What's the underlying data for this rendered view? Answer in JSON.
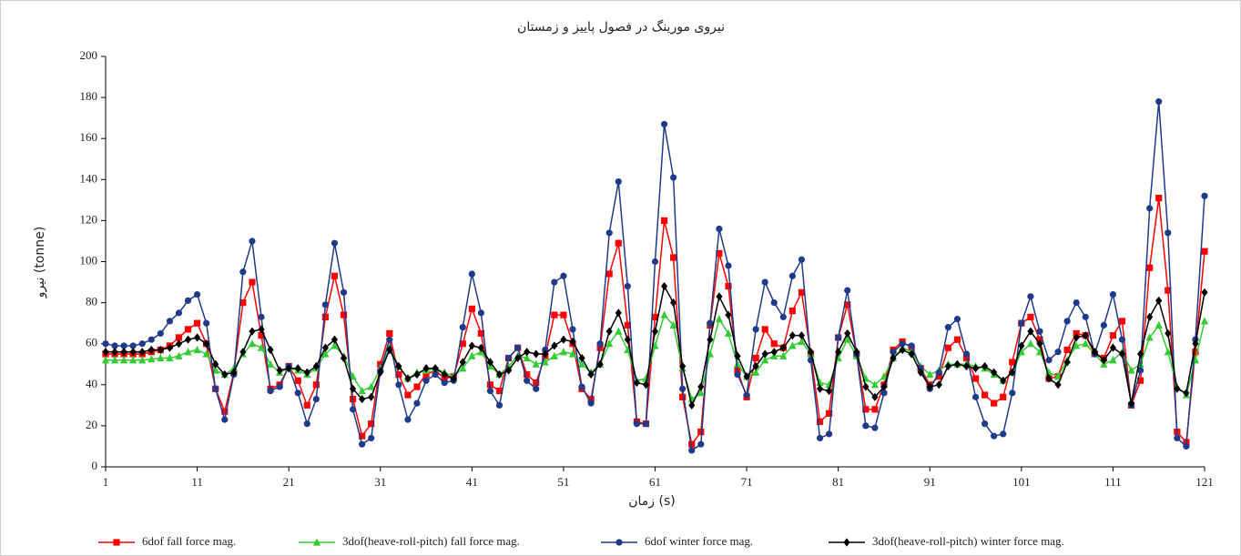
{
  "chart_data": {
    "type": "line",
    "title": "نیروی مورینگ در فصول پاییز و زمستان",
    "xlabel": "زمان (s)",
    "ylabel": "نیرو (tonne)",
    "grid": false,
    "legend_position": "bottom",
    "xlim": [
      1,
      121
    ],
    "xticks": [
      1,
      11,
      21,
      31,
      41,
      51,
      61,
      71,
      81,
      91,
      101,
      111,
      121
    ],
    "ylim": [
      0,
      200
    ],
    "yticks": [
      0,
      20,
      40,
      60,
      80,
      100,
      120,
      140,
      160,
      180,
      200
    ],
    "x": [
      1,
      2,
      3,
      4,
      5,
      6,
      7,
      8,
      9,
      10,
      11,
      12,
      13,
      14,
      15,
      16,
      17,
      18,
      19,
      20,
      21,
      22,
      23,
      24,
      25,
      26,
      27,
      28,
      29,
      30,
      31,
      32,
      33,
      34,
      35,
      36,
      37,
      38,
      39,
      40,
      41,
      42,
      43,
      44,
      45,
      46,
      47,
      48,
      49,
      50,
      51,
      52,
      53,
      54,
      55,
      56,
      57,
      58,
      59,
      60,
      61,
      62,
      63,
      64,
      65,
      66,
      67,
      68,
      69,
      70,
      71,
      72,
      73,
      74,
      75,
      76,
      77,
      78,
      79,
      80,
      81,
      82,
      83,
      84,
      85,
      86,
      87,
      88,
      89,
      90,
      91,
      92,
      93,
      94,
      95,
      96,
      97,
      98,
      99,
      100,
      101,
      102,
      103,
      104,
      105,
      106,
      107,
      108,
      109,
      110,
      111,
      112,
      113,
      114,
      115,
      116,
      117,
      118,
      119,
      120,
      121
    ],
    "series": [
      {
        "name": "6dof fall force mag.",
        "color": "#ff0000",
        "marker": "square",
        "values": [
          55,
          55,
          55,
          55,
          55,
          56,
          57,
          59,
          63,
          67,
          70,
          60,
          38,
          27,
          46,
          80,
          90,
          64,
          38,
          40,
          49,
          42,
          30,
          40,
          73,
          93,
          74,
          33,
          15,
          21,
          50,
          65,
          45,
          35,
          39,
          45,
          47,
          43,
          44,
          60,
          77,
          65,
          40,
          37,
          53,
          58,
          45,
          41,
          54,
          74,
          74,
          60,
          38,
          33,
          58,
          94,
          109,
          69,
          22,
          21,
          73,
          120,
          102,
          34,
          11,
          17,
          69,
          104,
          88,
          47,
          34,
          53,
          67,
          60,
          58,
          76,
          85,
          55,
          22,
          26,
          63,
          79,
          55,
          28,
          28,
          40,
          57,
          61,
          58,
          48,
          40,
          44,
          58,
          62,
          53,
          43,
          35,
          31,
          34,
          51,
          70,
          73,
          62,
          43,
          44,
          57,
          65,
          64,
          55,
          53,
          64,
          71,
          30,
          42,
          97,
          131,
          86,
          17,
          12,
          56,
          105
        ]
      },
      {
        "name": "3dof(heave-roll-pitch) fall force mag.",
        "color": "#33cc33",
        "marker": "triangle",
        "values": [
          52,
          52,
          52,
          52,
          52,
          52.5,
          53,
          53,
          54,
          56,
          57,
          55,
          47,
          45,
          48,
          55,
          60,
          58,
          50,
          46,
          48,
          47,
          45,
          48,
          55,
          59,
          54,
          44,
          37,
          39,
          48,
          58,
          49,
          43,
          46,
          47,
          48,
          46,
          44,
          48,
          54,
          56,
          49,
          45,
          49,
          54,
          53,
          50,
          51,
          54,
          56,
          55,
          50,
          46,
          50,
          60,
          66,
          57,
          42,
          43,
          59,
          74,
          69,
          48,
          33,
          36,
          55,
          72,
          65,
          50,
          44,
          46,
          52,
          54,
          54,
          59,
          61,
          55,
          41,
          40,
          53,
          62,
          54,
          43,
          40,
          44,
          53,
          58,
          56,
          49,
          45,
          47,
          50,
          50,
          50,
          49,
          48,
          45,
          42,
          46,
          56,
          60,
          56,
          46,
          44,
          52,
          59,
          60,
          55,
          50,
          52,
          56,
          47,
          50,
          63,
          69,
          56,
          39,
          35,
          52,
          71
        ]
      },
      {
        "name": "6dof winter force mag.",
        "color": "#1f3a8a",
        "marker": "circle",
        "values": [
          60,
          59,
          59,
          59,
          60,
          62,
          65,
          71,
          75,
          81,
          84,
          70,
          38,
          23,
          45,
          95,
          110,
          73,
          37,
          39,
          49,
          36,
          21,
          33,
          79,
          109,
          85,
          28,
          11,
          14,
          47,
          62,
          40,
          23,
          31,
          42,
          45,
          41,
          42,
          68,
          94,
          75,
          37,
          30,
          53,
          58,
          42,
          38,
          57,
          90,
          93,
          67,
          39,
          31,
          60,
          114,
          139,
          88,
          21,
          21,
          100,
          167,
          141,
          38,
          8,
          11,
          70,
          116,
          98,
          45,
          35,
          67,
          90,
          80,
          73,
          93,
          101,
          52,
          14,
          16,
          63,
          86,
          55,
          20,
          19,
          36,
          56,
          60,
          59,
          48,
          38,
          46,
          68,
          72,
          55,
          34,
          21,
          15,
          16,
          36,
          70,
          83,
          66,
          52,
          56,
          71,
          80,
          73,
          55,
          69,
          84,
          62,
          30,
          47,
          126,
          178,
          114,
          14,
          10,
          62,
          132
        ]
      },
      {
        "name": "3dof(heave-roll-pitch) winter force mag.",
        "color": "#000000",
        "marker": "diamond",
        "values": [
          56,
          56,
          56,
          56,
          56,
          57,
          57,
          58,
          60,
          62,
          63,
          60,
          50,
          45,
          46,
          56,
          66,
          67,
          57,
          47,
          48,
          48,
          46,
          49,
          58,
          62,
          53,
          38,
          33,
          34,
          46,
          57,
          49,
          43,
          45,
          48,
          48,
          45,
          43,
          51,
          59,
          58,
          51,
          45,
          47,
          53,
          56,
          55,
          55,
          59,
          62,
          61,
          53,
          45,
          50,
          66,
          75,
          62,
          41,
          40,
          66,
          88,
          80,
          49,
          30,
          39,
          62,
          83,
          74,
          54,
          44,
          49,
          55,
          56,
          58,
          64,
          64,
          56,
          38,
          37,
          56,
          65,
          56,
          39,
          34,
          39,
          53,
          57,
          55,
          46,
          39,
          40,
          49,
          50,
          49,
          48,
          49,
          46,
          42,
          46,
          59,
          66,
          60,
          43,
          40,
          51,
          63,
          64,
          56,
          52,
          58,
          55,
          31,
          55,
          73,
          81,
          65,
          38,
          36,
          60,
          85
        ]
      }
    ]
  }
}
